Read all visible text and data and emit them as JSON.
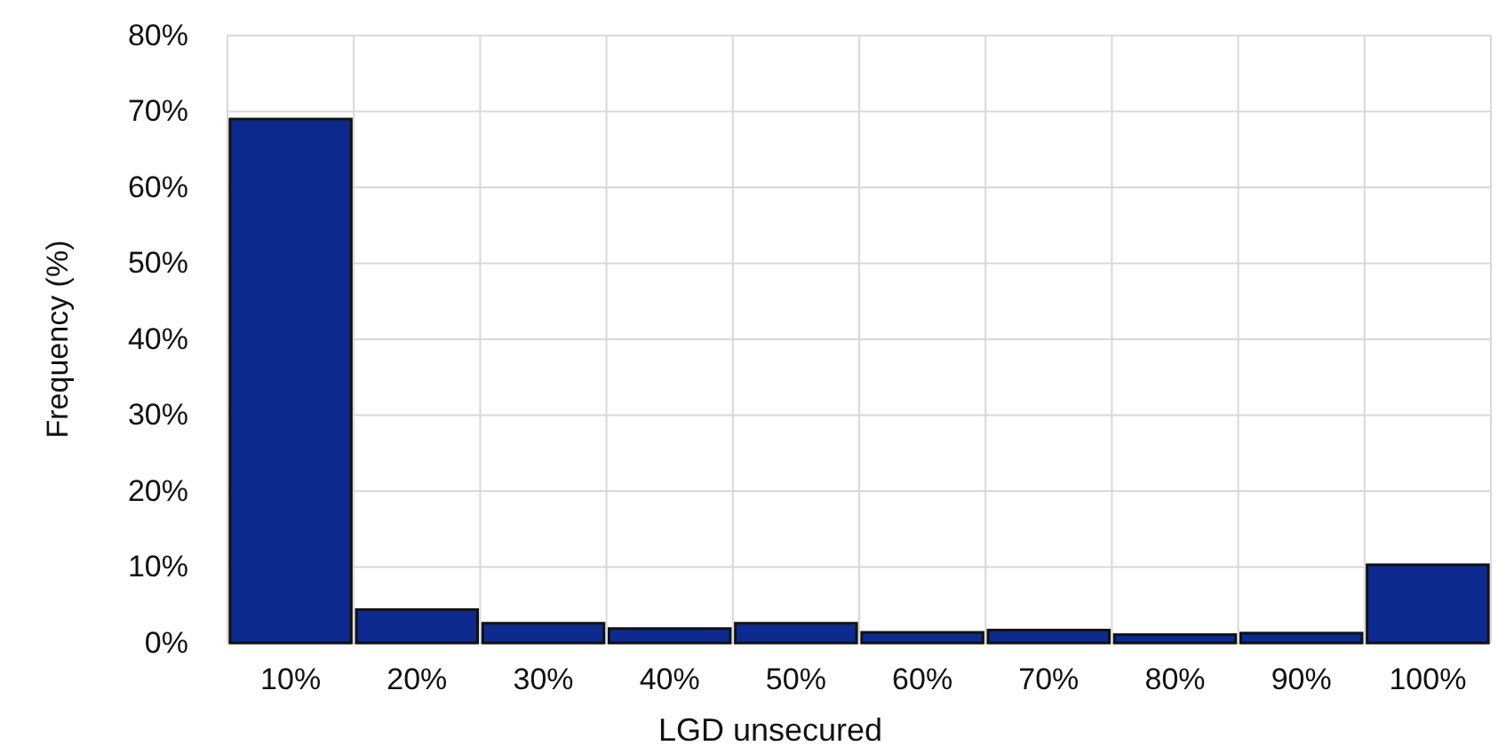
{
  "chart_data": {
    "type": "bar",
    "xlabel": "LGD unsecured",
    "ylabel": "Frequency (%)",
    "categories": [
      "10%",
      "20%",
      "30%",
      "40%",
      "50%",
      "60%",
      "70%",
      "80%",
      "90%",
      "100%"
    ],
    "values": [
      69,
      4.4,
      2.6,
      1.9,
      2.6,
      1.4,
      1.7,
      1.1,
      1.3,
      10.3
    ],
    "color": "#0d2a8f",
    "ylim": [
      0,
      80
    ],
    "yticks": [
      {
        "value": 0,
        "label": "0%"
      },
      {
        "value": 10,
        "label": "10%"
      },
      {
        "value": 20,
        "label": "20%"
      },
      {
        "value": 30,
        "label": "30%"
      },
      {
        "value": 40,
        "label": "40%"
      },
      {
        "value": 50,
        "label": "50%"
      },
      {
        "value": 60,
        "label": "60%"
      },
      {
        "value": 70,
        "label": "70%"
      },
      {
        "value": 80,
        "label": "80%"
      }
    ],
    "grid": true
  }
}
